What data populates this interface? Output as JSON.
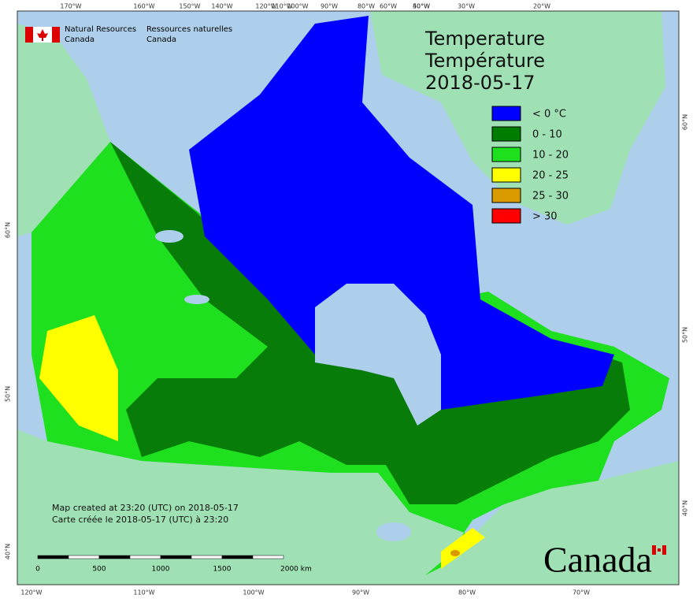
{
  "header": {
    "agency_en": [
      "Natural Resources",
      "Canada"
    ],
    "agency_fr": [
      "Ressources naturelles",
      "Canada"
    ]
  },
  "title": [
    "Temperature",
    "Température",
    "2018-05-17"
  ],
  "legend": [
    {
      "label": "< 0 °C",
      "color": "#0000ff"
    },
    {
      "label": "0 - 10",
      "color": "#007c00"
    },
    {
      "label": "10 - 20",
      "color": "#1ee01e"
    },
    {
      "label": "20 - 25",
      "color": "#ffff00"
    },
    {
      "label": "25 - 30",
      "color": "#d99a00"
    },
    {
      "label": "> 30",
      "color": "#ff0000"
    }
  ],
  "graticule": {
    "top": [
      "170°W",
      "160°W",
      "150°W",
      "140°W",
      "120°W",
      "110°W",
      "100°W",
      "90°W",
      "80°W",
      "60°W",
      "50°W",
      "40°W",
      "30°W",
      "20°W"
    ],
    "bottom": [
      "120°W",
      "110°W",
      "100°W",
      "90°W",
      "80°W",
      "70°W"
    ],
    "left": [
      "60°N",
      "50°N",
      "40°N"
    ],
    "right": [
      "60°N",
      "50°N",
      "40°N"
    ]
  },
  "notes": [
    "Map created at 23:20 (UTC) on 2018-05-17",
    "Carte créée le 2018-05-17 (UTC) à 23:20"
  ],
  "scale": [
    "0",
    "500",
    "1000",
    "1500",
    "2000 km"
  ],
  "wordmark": "Canada"
}
